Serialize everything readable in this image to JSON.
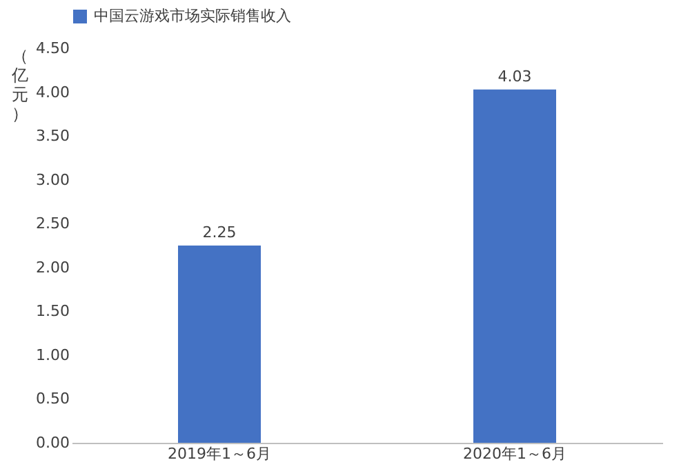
{
  "chart_data": {
    "type": "bar",
    "ylabel": "（亿元）",
    "categories": [
      "2019年1～6月",
      "2020年1～6月"
    ],
    "series": [
      {
        "name": "中国云游戏市场实际销售收入",
        "color": "#4472c4",
        "values": [
          2.25,
          4.03
        ]
      }
    ],
    "ylim": [
      0,
      4.5
    ],
    "yticks": [
      {
        "value": 0,
        "label": "0.00"
      },
      {
        "value": 0.5,
        "label": "0.50"
      },
      {
        "value": 1,
        "label": "1.00"
      },
      {
        "value": 1.5,
        "label": "1.50"
      },
      {
        "value": 2,
        "label": "2.00"
      },
      {
        "value": 2.5,
        "label": "2.50"
      },
      {
        "value": 3,
        "label": "3.00"
      },
      {
        "value": 3.5,
        "label": "3.50"
      },
      {
        "value": 4,
        "label": "4.00"
      },
      {
        "value": 4.5,
        "label": "4.50"
      }
    ],
    "data_labels": true,
    "grid": false,
    "legend": "top"
  }
}
